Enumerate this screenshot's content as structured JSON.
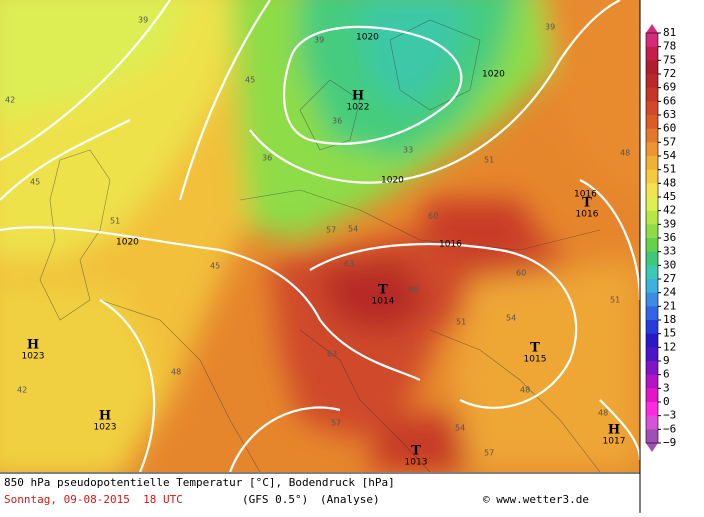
{
  "legend": {
    "labels": [
      "81",
      "78",
      "75",
      "72",
      "69",
      "66",
      "63",
      "60",
      "57",
      "54",
      "51",
      "48",
      "45",
      "42",
      "39",
      "36",
      "33",
      "30",
      "27",
      "24",
      "21",
      "18",
      "15",
      "12",
      "9",
      "6",
      "3",
      "0",
      "−3",
      "−6",
      "−9"
    ],
    "colors": [
      "#d62a7a",
      "#c41e4a",
      "#b01e2d",
      "#b82a28",
      "#c63626",
      "#d2482a",
      "#dc5c28",
      "#e6782c",
      "#ee9430",
      "#f2b034",
      "#f5ca3c",
      "#f5e250",
      "#def050",
      "#b8e646",
      "#8edc46",
      "#66d24c",
      "#40c87a",
      "#3cc8b2",
      "#3cb2dc",
      "#3c8ce6",
      "#3264e6",
      "#283cdc",
      "#2a18c8",
      "#5014c8",
      "#8214c8",
      "#b414c8",
      "#e614c8",
      "#ff2ae0",
      "#d852d8",
      "#a050b4"
    ]
  },
  "caption": {
    "line1": "850 hPa pseudopotentielle Temperatur [°C], Bodendruck [hPa]",
    "date": "Sonntag, 09-08-2015  18 UTC",
    "model": "(GFS 0.5°)",
    "run": "(Analyse)",
    "credit": "© www.wetter3.de"
  },
  "pressure_centers": [
    {
      "symbol": "H",
      "value": "1022"
    },
    {
      "symbol": "H",
      "value": "1023"
    },
    {
      "symbol": "H",
      "value": "1023"
    },
    {
      "symbol": "T",
      "value": "1014"
    },
    {
      "symbol": "T",
      "value": "1015"
    },
    {
      "symbol": "T",
      "value": "1013"
    },
    {
      "symbol": "T",
      "value": "1016"
    },
    {
      "symbol": "H",
      "value": "1017"
    }
  ],
  "isobar_labels": [
    "1020",
    "1020",
    "1020",
    "1020",
    "1016",
    "1016"
  ],
  "contour_labels": [
    "39",
    "39",
    "42",
    "45",
    "36",
    "36",
    "39",
    "45",
    "33",
    "51",
    "54",
    "57",
    "60",
    "63",
    "66",
    "63",
    "60",
    "54",
    "51",
    "48",
    "48",
    "45",
    "42",
    "51",
    "57",
    "54",
    "48",
    "51",
    "57",
    "48"
  ]
}
